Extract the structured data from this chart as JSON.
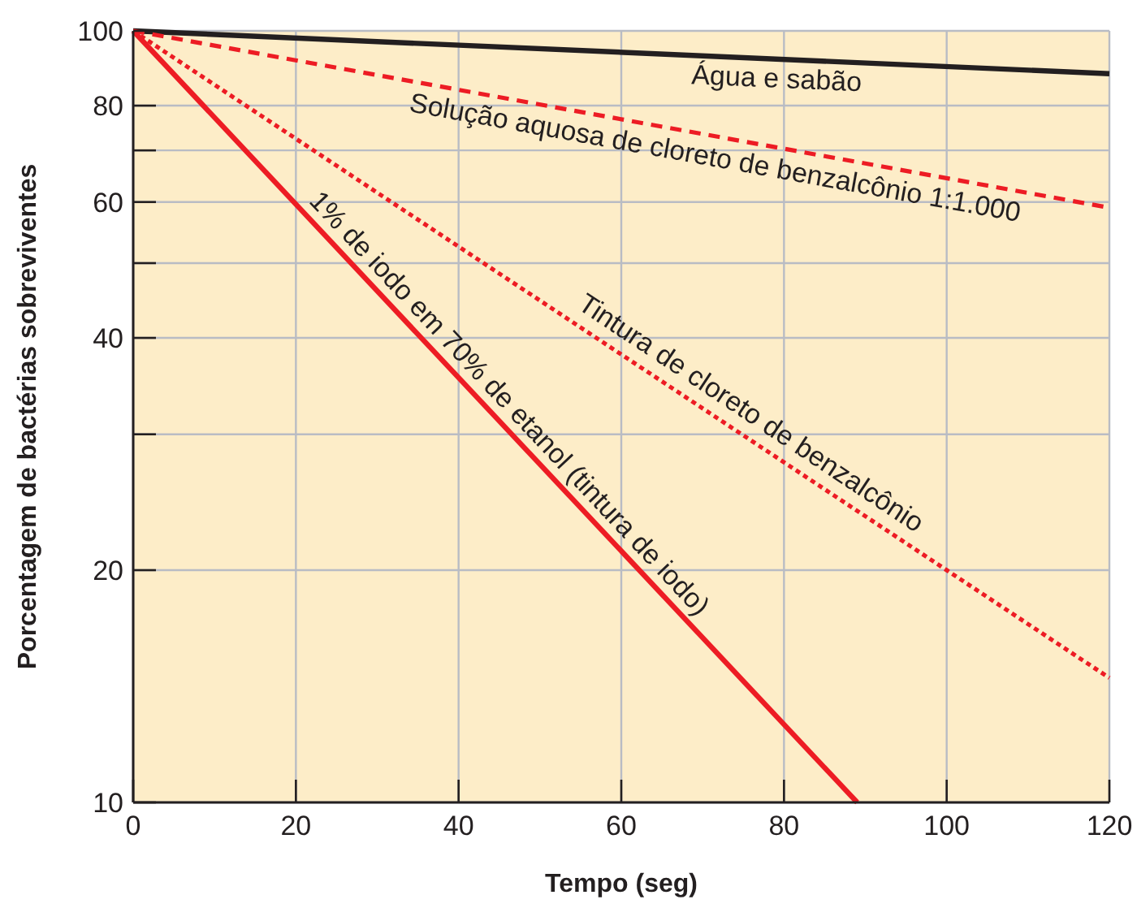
{
  "chart_data": {
    "type": "line",
    "xlabel": "Tempo (seg)",
    "ylabel": "Porcentagem de bactérias sobreviventes",
    "log": "y",
    "xlim": [
      0,
      120
    ],
    "xticks": [
      0,
      20,
      40,
      60,
      80,
      100,
      120
    ],
    "ylim": [
      10,
      100
    ],
    "yticks": [
      10,
      20,
      {
        "value": 30,
        "label": null
      },
      40,
      {
        "value": 50,
        "label": null
      },
      60,
      {
        "value": 70,
        "label": null
      },
      80,
      100
    ],
    "grid": true,
    "marker": "none",
    "series": [
      {
        "name": "Água e sabão",
        "color": "#231f20",
        "line_style": "solid",
        "x": [
          0,
          120
        ],
        "values": [
          100,
          88
        ]
      },
      {
        "name": "Solução aquosa de cloreto de benzalcônio 1:1.000",
        "color": "#ed1c24",
        "line_style": "dashed",
        "x": [
          0,
          120
        ],
        "values": [
          100,
          59
        ]
      },
      {
        "name": "Tintura de cloreto de benzalcônio",
        "color": "#ed1c24",
        "line_style": "dotted",
        "x": [
          0,
          100,
          120
        ],
        "values": [
          100,
          20,
          14.5
        ]
      },
      {
        "name": "1% de iodo em 70% de etanol (tintura de iodo)",
        "color": "#ed1c24",
        "line_style": "solid",
        "x": [
          0,
          89
        ],
        "values": [
          100,
          10
        ]
      }
    ]
  }
}
